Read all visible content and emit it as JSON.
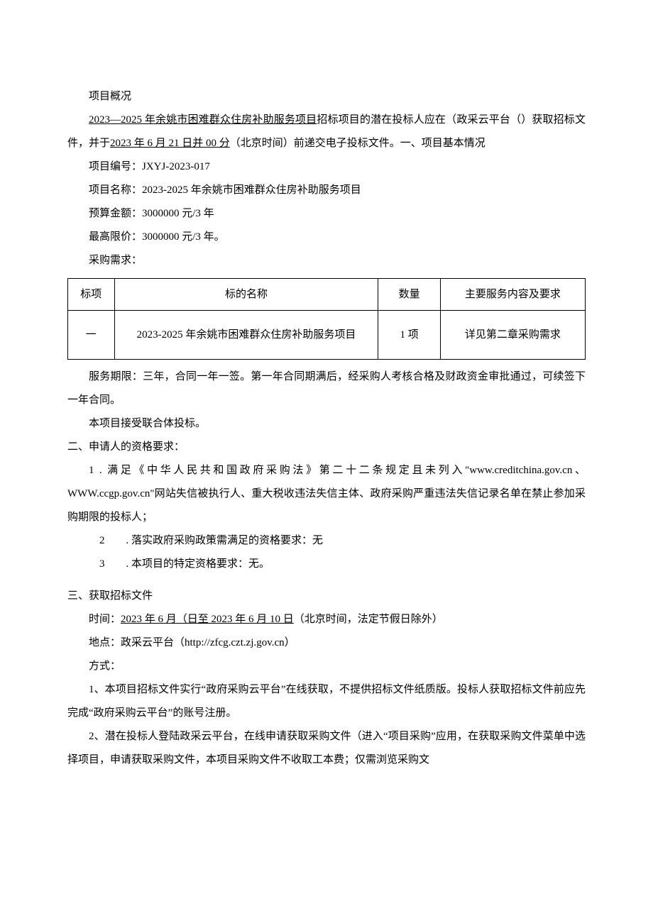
{
  "section1_title": "项目概况",
  "intro_line1_u1": "2023—2025 年余姚市困难群众住房补助服务项目",
  "intro_line1_t1": "招标项目的潜在投标人应在（政采云平台（）获取招标文件，并于",
  "intro_line1_u2": "2023 年 6 月 21 日并 00 分",
  "intro_line1_t2": "（北京时间）前递交电子投标文件。一、项目基本情况",
  "proj_no": "项目编号：JXYJ-2023-017",
  "proj_name": "项目名称：2023-2025 年余姚市困难群众住房补助服务项目",
  "budget": "预算金额：3000000 元/3 年",
  "max_price": "最高限价：3000000 元/3 年。",
  "need_label": "采购需求：",
  "table": {
    "headers": [
      "标项",
      "标的名称",
      "数量",
      "主要服务内容及要求"
    ],
    "row": [
      "一",
      "2023-2025 年余姚市困难群众住房补助服务项目",
      "1 项",
      "详见第二章采购需求"
    ]
  },
  "service_period": "服务期限：三年，合同一年一签。第一年合同期满后，经采购人考核合格及财政资金审批通过，可续签下一年合同。",
  "joint_bid": "本项目接受联合体投标。",
  "section2_title": "二、申请人的资格要求：",
  "req1": "1 . 满足《中华人民共和国政府采购法》第二十二条规定且未列入\"www.creditchina.gov.cn、WWW.ccgp.gov.cn\"网站失信被执行人、重大税收违法失信主体、政府采购严重违法失信记录名单在禁止参加采购期限的投标人；",
  "req2": "2  . 落实政府采购政策需满足的资格要求：无",
  "req3": "3  . 本项目的特定资格要求：无。",
  "section3_title": "三、获取招标文件",
  "time_label": "时间：",
  "time_u1": "2023 年 6 月（日至 2023 年 6 月 10 日",
  "time_t2": "（北京时间，法定节假日除外）",
  "location": "地点：政采云平台（http://zfcg.czt.zj.gov.cn）",
  "method_label": "方式：",
  "method1": "1、本项目招标文件实行“政府采购云平台”在线获取，不提供招标文件纸质版。投标人获取招标文件前应先完成“政府采购云平台”的账号注册。",
  "method2": "2、潜在投标人登陆政采云平台，在线申请获取采购文件（进入“项目采购”应用，在获取采购文件菜单中选择项目，申请获取采购文件，本项目采购文件不收取工本费；仅需浏览采购文"
}
